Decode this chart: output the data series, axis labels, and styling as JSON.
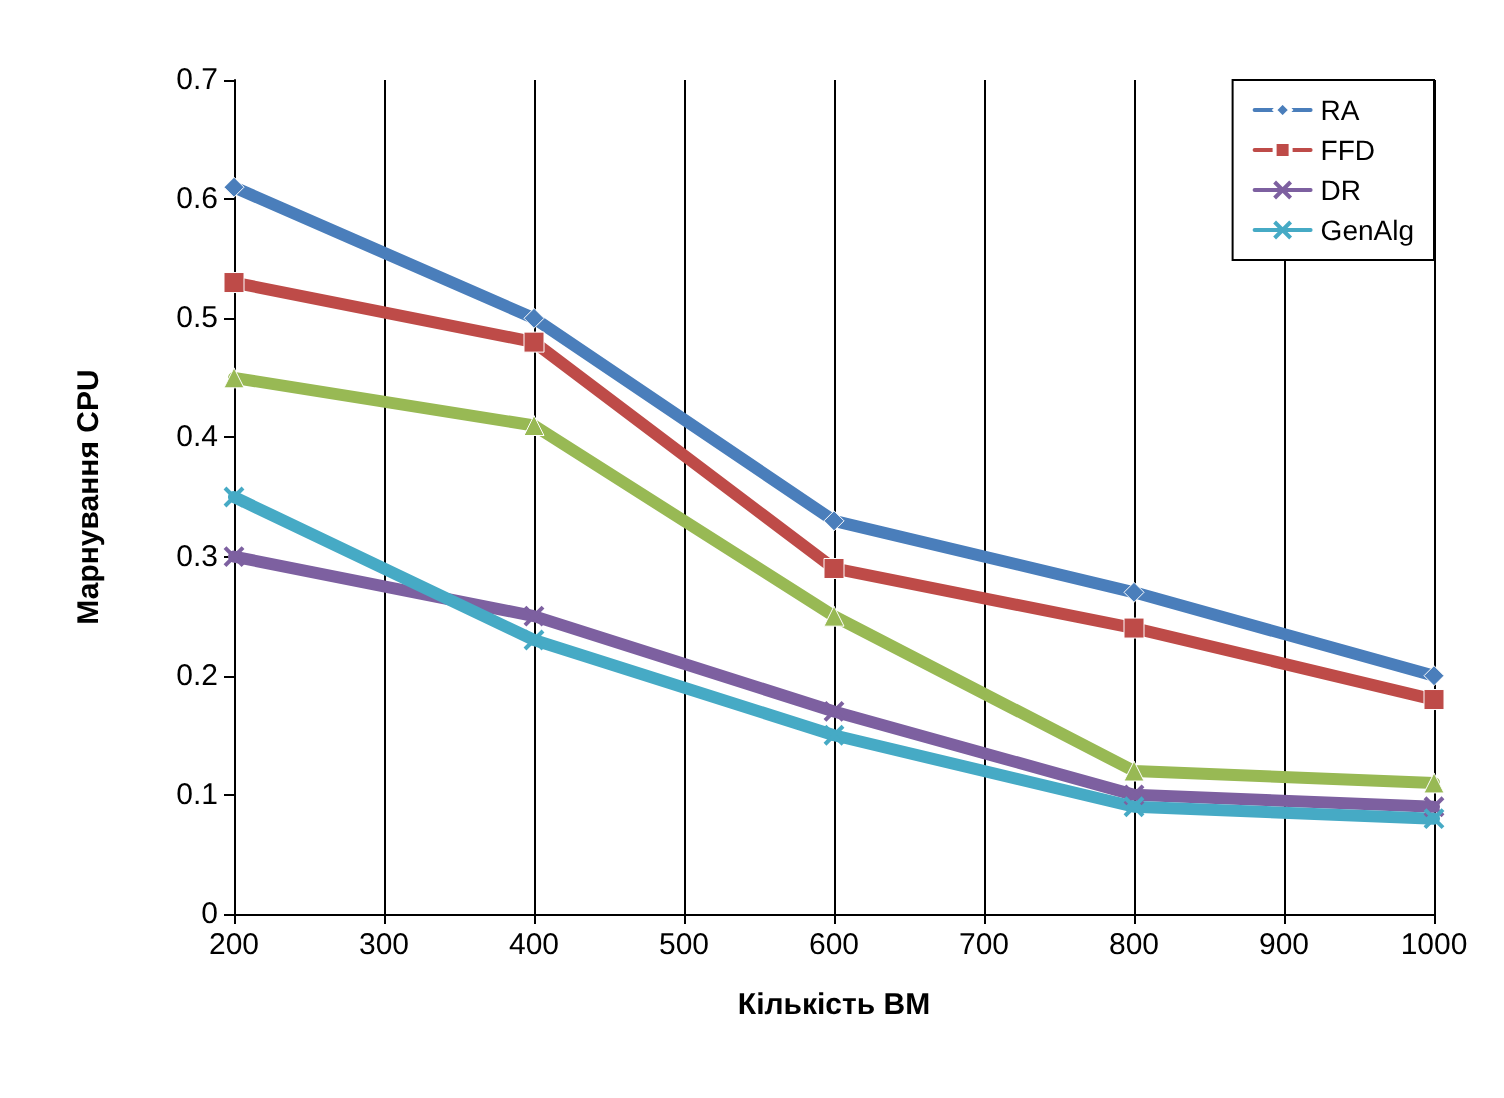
{
  "chart_data": {
    "type": "line",
    "xlabel": "Кількість ВМ",
    "ylabel": "Марнування CPU",
    "x": [
      200,
      400,
      600,
      800,
      1000
    ],
    "series": [
      {
        "name": "RA",
        "color": "#4a7ebb",
        "marker": "diamond",
        "values": [
          0.61,
          0.5,
          0.33,
          0.27,
          0.2
        ]
      },
      {
        "name": "FFD",
        "color": "#be4b48",
        "marker": "square",
        "values": [
          0.53,
          0.48,
          0.29,
          0.24,
          0.18
        ]
      },
      {
        "color": "#98b954",
        "marker": "triangle",
        "values": [
          0.45,
          0.41,
          0.25,
          0.12,
          0.11
        ]
      },
      {
        "name": "DR",
        "color": "#7d60a0",
        "marker": "cross",
        "values": [
          0.3,
          0.25,
          0.17,
          0.1,
          0.09
        ]
      },
      {
        "name": "GenAlg",
        "color": "#46aac5",
        "marker": "cross",
        "values": [
          0.35,
          0.23,
          0.15,
          0.09,
          0.08
        ]
      }
    ],
    "xlim": [
      200,
      1000
    ],
    "xticks": [
      200,
      300,
      400,
      500,
      600,
      700,
      800,
      900,
      1000
    ],
    "ylim": [
      0,
      0.7
    ],
    "yticks": [
      0,
      0.1,
      0.2,
      0.3,
      0.4,
      0.5,
      0.6,
      0.7
    ],
    "grid": "x",
    "legend": "top right",
    "line_style": "solid"
  }
}
